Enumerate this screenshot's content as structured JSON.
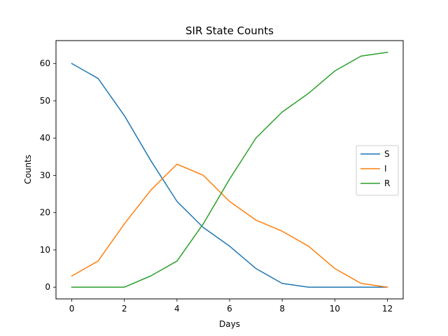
{
  "chart_data": {
    "type": "line",
    "title": "SIR State Counts",
    "xlabel": "Days",
    "ylabel": "Counts",
    "xlim": [
      -0.6,
      12.6
    ],
    "ylim": [
      -3.15,
      66.15
    ],
    "xticks": [
      0,
      2,
      4,
      6,
      8,
      10,
      12
    ],
    "yticks": [
      0,
      10,
      20,
      30,
      40,
      50,
      60
    ],
    "x": [
      0,
      1,
      2,
      3,
      4,
      5,
      6,
      7,
      8,
      9,
      10,
      11,
      12
    ],
    "series": [
      {
        "name": "S",
        "color": "#1f77b4",
        "values": [
          60,
          56,
          46,
          34,
          23,
          16,
          11,
          5,
          1,
          0,
          0,
          0,
          0
        ]
      },
      {
        "name": "I",
        "color": "#ff7f0e",
        "values": [
          3,
          7,
          17,
          26,
          33,
          30,
          23,
          18,
          15,
          11,
          5,
          1,
          0
        ]
      },
      {
        "name": "R",
        "color": "#2ca02c",
        "values": [
          0,
          0,
          0,
          3,
          7,
          17,
          29,
          40,
          47,
          52,
          58,
          62,
          63
        ]
      }
    ],
    "grid": false,
    "legend": "center-right"
  }
}
